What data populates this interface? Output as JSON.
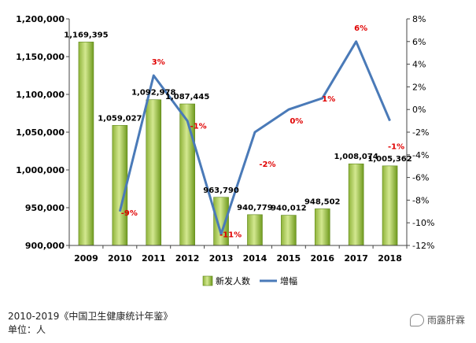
{
  "chart_data": {
    "type": "bar",
    "categories": [
      "2009",
      "2010",
      "2011",
      "2012",
      "2013",
      "2014",
      "2015",
      "2016",
      "2017",
      "2018"
    ],
    "series": [
      {
        "name": "新发人数",
        "type": "bar",
        "axis": "left",
        "values": [
          1169395,
          1059027,
          1092978,
          1087445,
          963790,
          940779,
          940012,
          948502,
          1008074,
          1005362
        ],
        "labels": [
          "1,169,395",
          "1,059,027",
          "1,092,978",
          "1,087,445",
          "963,790",
          "940,779",
          "940,012",
          "948,502",
          "1,008,074",
          "1,005,362"
        ]
      },
      {
        "name": "增幅",
        "type": "line",
        "axis": "right",
        "values": [
          null,
          -9,
          3,
          -1,
          -11,
          -2,
          0,
          1,
          6,
          -1
        ],
        "labels": [
          "",
          "-9%",
          "3%",
          "-1%",
          "-11%",
          "-2%",
          "0%",
          "1%",
          "6%",
          "-1%"
        ]
      }
    ],
    "y_left": {
      "min": 900000,
      "max": 1200000,
      "step": 50000,
      "ticks": [
        "900,000",
        "950,000",
        "1,000,000",
        "1,050,000",
        "1,100,000",
        "1,150,000",
        "1,200,000"
      ]
    },
    "y_right": {
      "min": -12,
      "max": 8,
      "step": 2,
      "ticks": [
        "-12%",
        "-10%",
        "-8%",
        "-6%",
        "-4%",
        "-2%",
        "0%",
        "2%",
        "4%",
        "6%",
        "8%"
      ]
    },
    "legend_position": "bottom",
    "colors": {
      "bar_light": "#c9e07a",
      "bar_dark": "#6f9a1e",
      "line": "#4a7ab8",
      "pct_label": "#e00000"
    }
  },
  "footer": {
    "source": "2010-2019《中国卫生健康统计年鉴》",
    "unit": "单位：人"
  },
  "watermark": {
    "text": "雨露肝霖",
    "icon": "chat-bubble-icon"
  }
}
